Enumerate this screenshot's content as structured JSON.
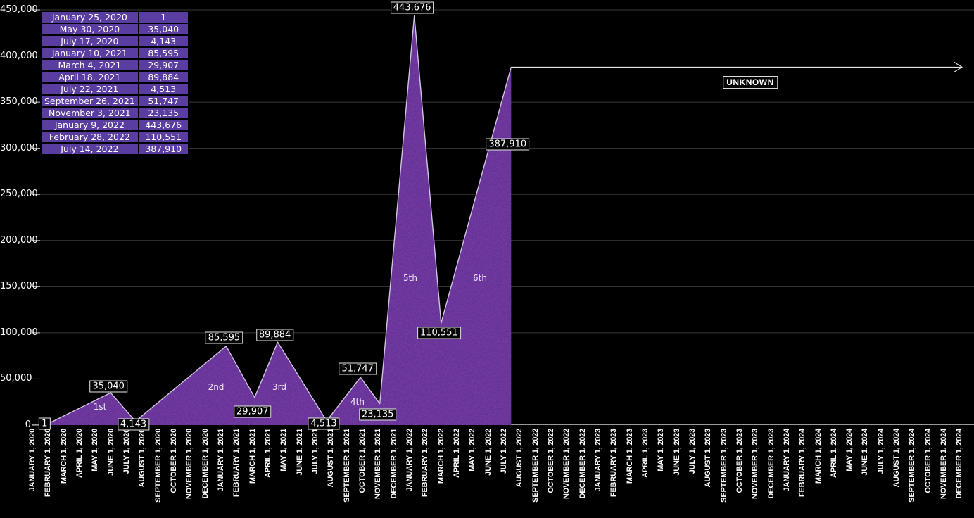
{
  "chart_data": {
    "type": "area",
    "title": "",
    "xlabel": "",
    "ylabel": "",
    "legend": "none",
    "grid": "horizontal",
    "y_axis": {
      "min": 0,
      "max": 450000,
      "tick_step": 50000,
      "tick_labels": [
        "0",
        "50,000",
        "100,000",
        "150,000",
        "200,000",
        "250,000",
        "300,000",
        "350,000",
        "400,000",
        "450,000"
      ]
    },
    "x_axis": {
      "tick_labels": [
        "JANUARY 1, 2020",
        "FEBRUARY 1, 2020",
        "MARCH 1, 2020",
        "APRIL 1, 2020",
        "MAY 1, 2020",
        "JUNE 1, 2020",
        "JULY 1, 2020",
        "AUGUST 1, 2020",
        "SEPTEMBER 1, 2020",
        "OCTOBER 1, 2020",
        "NOVEMBER 1, 2020",
        "DECEMBER 1, 2020",
        "JANUARY 1, 2021",
        "FEBRUARY 1, 2021",
        "MARCH 1, 2021",
        "APRIL 1, 2021",
        "MAY 1, 2021",
        "JUNE 1, 2021",
        "JULY 1, 2021",
        "AUGUST 1, 2021",
        "SEPTEMBER 1, 2021",
        "OCTOBER 1, 2021",
        "NOVEMBER 1, 2021",
        "DECEMBER 1, 2021",
        "JANUARY 1, 2022",
        "FEBRUARY 1, 2022",
        "MARCH 1, 2022",
        "APRIL 1, 2022",
        "MAY 1, 2022",
        "JUNE 1, 2022",
        "JULY 1, 2022",
        "AUGUST 1, 2022",
        "SEPTEMBER 1, 2022",
        "OCTOBER 1, 2022",
        "NOVEMBER 1, 2022",
        "DECEMBER 1, 2022",
        "JANUARY 1, 2023",
        "FEBRUARY 1, 2023",
        "MARCH 1, 2023",
        "APRIL 1, 2023",
        "MAY 1, 2023",
        "JUNE 1, 2023",
        "JULY 1, 2023",
        "AUGUST 1, 2023",
        "SEPTEMBER 1, 2023",
        "OCTOBER 1, 2023",
        "NOVEMBER 1, 2023",
        "DECEMBER 1, 2023",
        "JANUARY 1, 2024",
        "FEBRUARY 1, 2024",
        "MARCH 1, 2024",
        "APRIL 1, 2024",
        "MAY 1, 2024",
        "JUNE 1, 2024",
        "JULY 1, 2024",
        "AUGUST 1, 2024",
        "SEPTEMBER 1, 2024",
        "OCTOBER 1, 2024",
        "NOVEMBER 1, 2024",
        "DECEMBER 1, 2024"
      ]
    },
    "points": [
      {
        "date": "January 25, 2020",
        "value": 1,
        "label": "1"
      },
      {
        "date": "May 30, 2020",
        "value": 35040,
        "label": "35,040"
      },
      {
        "date": "July 17, 2020",
        "value": 4143,
        "label": "4,143"
      },
      {
        "date": "January 10, 2021",
        "value": 85595,
        "label": "85,595"
      },
      {
        "date": "March 4, 2021",
        "value": 29907,
        "label": "29,907"
      },
      {
        "date": "April 18, 2021",
        "value": 89884,
        "label": "89,884"
      },
      {
        "date": "July 22, 2021",
        "value": 4513,
        "label": "4,513"
      },
      {
        "date": "September 26, 2021",
        "value": 51747,
        "label": "51,747"
      },
      {
        "date": "November 3, 2021",
        "value": 23135,
        "label": "23,135"
      },
      {
        "date": "January 9, 2022",
        "value": 443676,
        "label": "443,676"
      },
      {
        "date": "February 28, 2022",
        "value": 110551,
        "label": "110,551"
      },
      {
        "date": "July 14, 2022",
        "value": 387910,
        "label": "387,910"
      }
    ],
    "waves": [
      "1st",
      "2nd",
      "3rd",
      "4th",
      "5th",
      "6th"
    ],
    "annotations": {
      "unknown": "UNKNOWN",
      "unknown_arrow": "horizontal arrow from last peak to right edge"
    },
    "colors": {
      "background": "#000000",
      "area_fill": "#5c2b94",
      "area_noise_dark": "#38105f",
      "line": "#cfc3df",
      "grid": "#3a3a3a",
      "axis": "#999999",
      "tick_dash": "#cfcfcf",
      "arrow": "#e6e6e6",
      "table_bg": "#5a3da1",
      "label_bg": "#050505",
      "label_border": "#e8e8e8",
      "text": "#ffffff"
    }
  }
}
